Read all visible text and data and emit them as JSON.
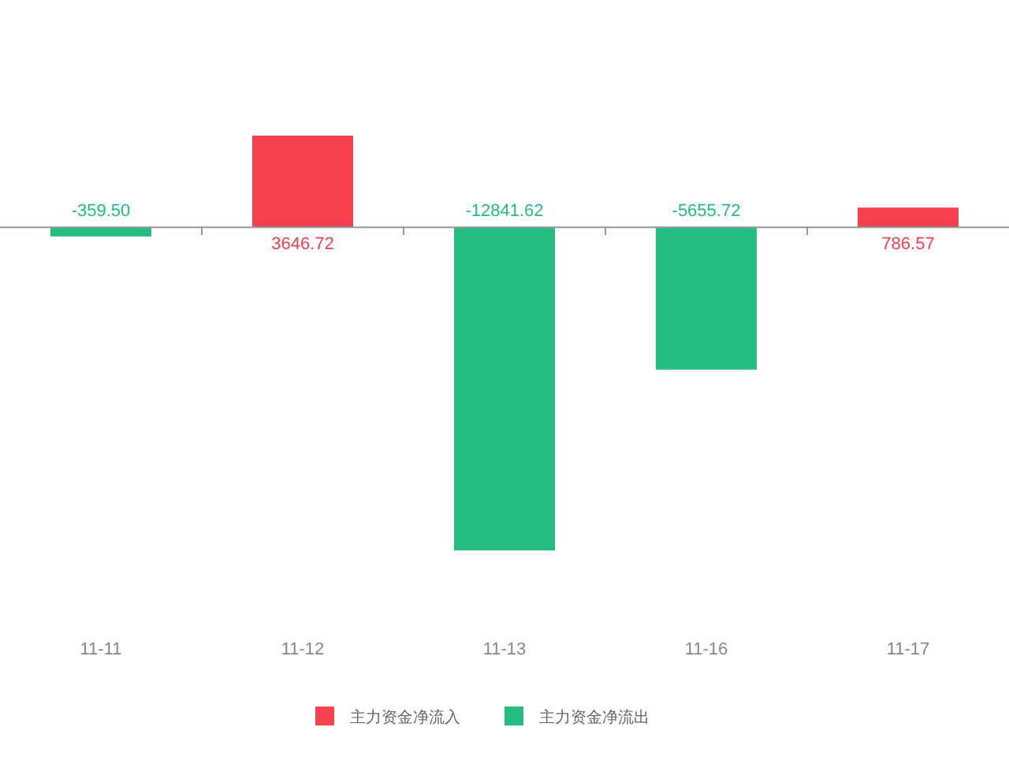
{
  "chart_data": {
    "type": "bar",
    "categories": [
      "11-11",
      "11-12",
      "11-13",
      "11-16",
      "11-17"
    ],
    "series": [
      {
        "name": "主力资金净流入",
        "color": "#f5404f",
        "values": [
          null,
          3646.72,
          null,
          null,
          786.57
        ],
        "value_labels": [
          null,
          "3646.72",
          null,
          null,
          "786.57"
        ]
      },
      {
        "name": "主力资金净流出",
        "color": "#23bd81",
        "values": [
          -359.5,
          null,
          -12841.62,
          -5655.72,
          null
        ],
        "value_labels": [
          "-359.50",
          null,
          "-12841.62",
          "-5655.72",
          null
        ]
      }
    ],
    "stacked": true,
    "tick_labels": "x",
    "legend": "bottom"
  }
}
